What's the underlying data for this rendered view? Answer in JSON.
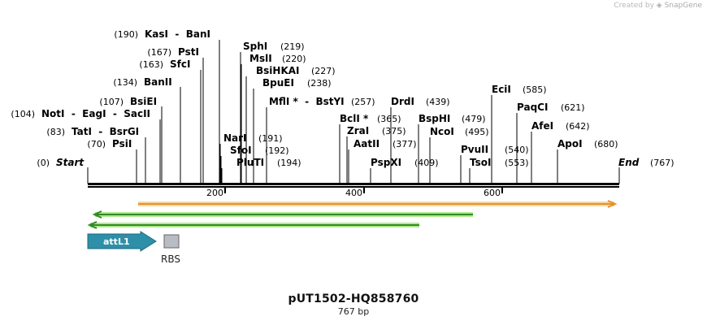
{
  "watermark": {
    "prefix": "Created by",
    "brand": "SnapGene"
  },
  "plasmid": {
    "name": "pUT1502-HQ858760",
    "length_label": "767 bp",
    "length_bp": 767
  },
  "ends": {
    "start_label": "Start",
    "start_pos": "(0)",
    "end_label": "End",
    "end_pos": "(767)"
  },
  "ruler": {
    "ticks": [
      200,
      400,
      600
    ]
  },
  "sites": [
    {
      "name": "KasI  -  BanI",
      "pos_label": "(190)",
      "pos_side": "left",
      "bp": 190
    },
    {
      "name": "PstI",
      "pos_label": "(167)",
      "pos_side": "left",
      "bp": 167
    },
    {
      "name": "SfcI",
      "pos_label": "(163)",
      "pos_side": "left",
      "bp": 163
    },
    {
      "name": "BanII",
      "pos_label": "(134)",
      "pos_side": "left",
      "bp": 134
    },
    {
      "name": "BsiEI",
      "pos_label": "(107)",
      "pos_side": "left",
      "bp": 107
    },
    {
      "name": "NotI  -  EagI  -  SacII",
      "pos_label": "(104)",
      "pos_side": "left",
      "bp": 104
    },
    {
      "name": "TatI  -  BsrGI",
      "pos_label": "(83)",
      "pos_side": "left",
      "bp": 83
    },
    {
      "name": "PsiI",
      "pos_label": "(70)",
      "pos_side": "left",
      "bp": 70
    },
    {
      "name": "SphI",
      "pos_label": "(219)",
      "pos_side": "right",
      "bp": 219
    },
    {
      "name": "MslI",
      "pos_label": "(220)",
      "pos_side": "right",
      "bp": 220
    },
    {
      "name": "BsiHKAI",
      "pos_label": "(227)",
      "pos_side": "right",
      "bp": 227
    },
    {
      "name": "BpuEI",
      "pos_label": "(238)",
      "pos_side": "right",
      "bp": 238
    },
    {
      "name": "MflI *  -  BstYI",
      "pos_label": "(257)",
      "pos_side": "right",
      "bp": 257
    },
    {
      "name": "NarI",
      "pos_label": "(191)",
      "pos_side": "right",
      "bp": 191
    },
    {
      "name": "SfoI",
      "pos_label": "(192)",
      "pos_side": "right",
      "bp": 192
    },
    {
      "name": "PluTI",
      "pos_label": "(194)",
      "pos_side": "right",
      "bp": 194
    },
    {
      "name": "BclI *",
      "pos_label": "(365)",
      "pos_side": "right",
      "bp": 365
    },
    {
      "name": "ZraI",
      "pos_label": "(375)",
      "pos_side": "right",
      "bp": 375
    },
    {
      "name": "AatII",
      "pos_label": "(377)",
      "pos_side": "right",
      "bp": 377
    },
    {
      "name": "PspXI",
      "pos_label": "(409)",
      "pos_side": "right",
      "bp": 409
    },
    {
      "name": "DrdI",
      "pos_label": "(439)",
      "pos_side": "right",
      "bp": 439
    },
    {
      "name": "BspHI",
      "pos_label": "(479)",
      "pos_side": "right",
      "bp": 479
    },
    {
      "name": "NcoI",
      "pos_label": "(495)",
      "pos_side": "right",
      "bp": 495
    },
    {
      "name": "PvuII",
      "pos_label": "(540)",
      "pos_side": "right",
      "bp": 540
    },
    {
      "name": "TsoI",
      "pos_label": "(553)",
      "pos_side": "right",
      "bp": 553
    },
    {
      "name": "EciI",
      "pos_label": "(585)",
      "pos_side": "right",
      "bp": 585
    },
    {
      "name": "PaqCI",
      "pos_label": "(621)",
      "pos_side": "right",
      "bp": 621
    },
    {
      "name": "AfeI",
      "pos_label": "(642)",
      "pos_side": "right",
      "bp": 642
    },
    {
      "name": "ApoI",
      "pos_label": "(680)",
      "pos_side": "right",
      "bp": 680
    }
  ],
  "features": [
    {
      "kind": "orf-forward",
      "start_bp": 72,
      "end_bp": 760,
      "color": "#f0a030",
      "glow": "#f8d8a0"
    },
    {
      "kind": "orf-reverse",
      "start_bp": 13,
      "end_bp": 560,
      "color": "#3a9a28",
      "glow": "#b0e890"
    },
    {
      "kind": "orf-reverse",
      "start_bp": 5,
      "end_bp": 480,
      "color": "#3a9a28",
      "glow": "#b0e890"
    },
    {
      "kind": "attL",
      "label": "attL1",
      "start_bp": 0,
      "end_bp": 100,
      "color": "#2e8fa8"
    },
    {
      "kind": "rbs",
      "label": "RBS",
      "start_bp": 111,
      "end_bp": 132,
      "color": "#b8bcc4"
    }
  ]
}
